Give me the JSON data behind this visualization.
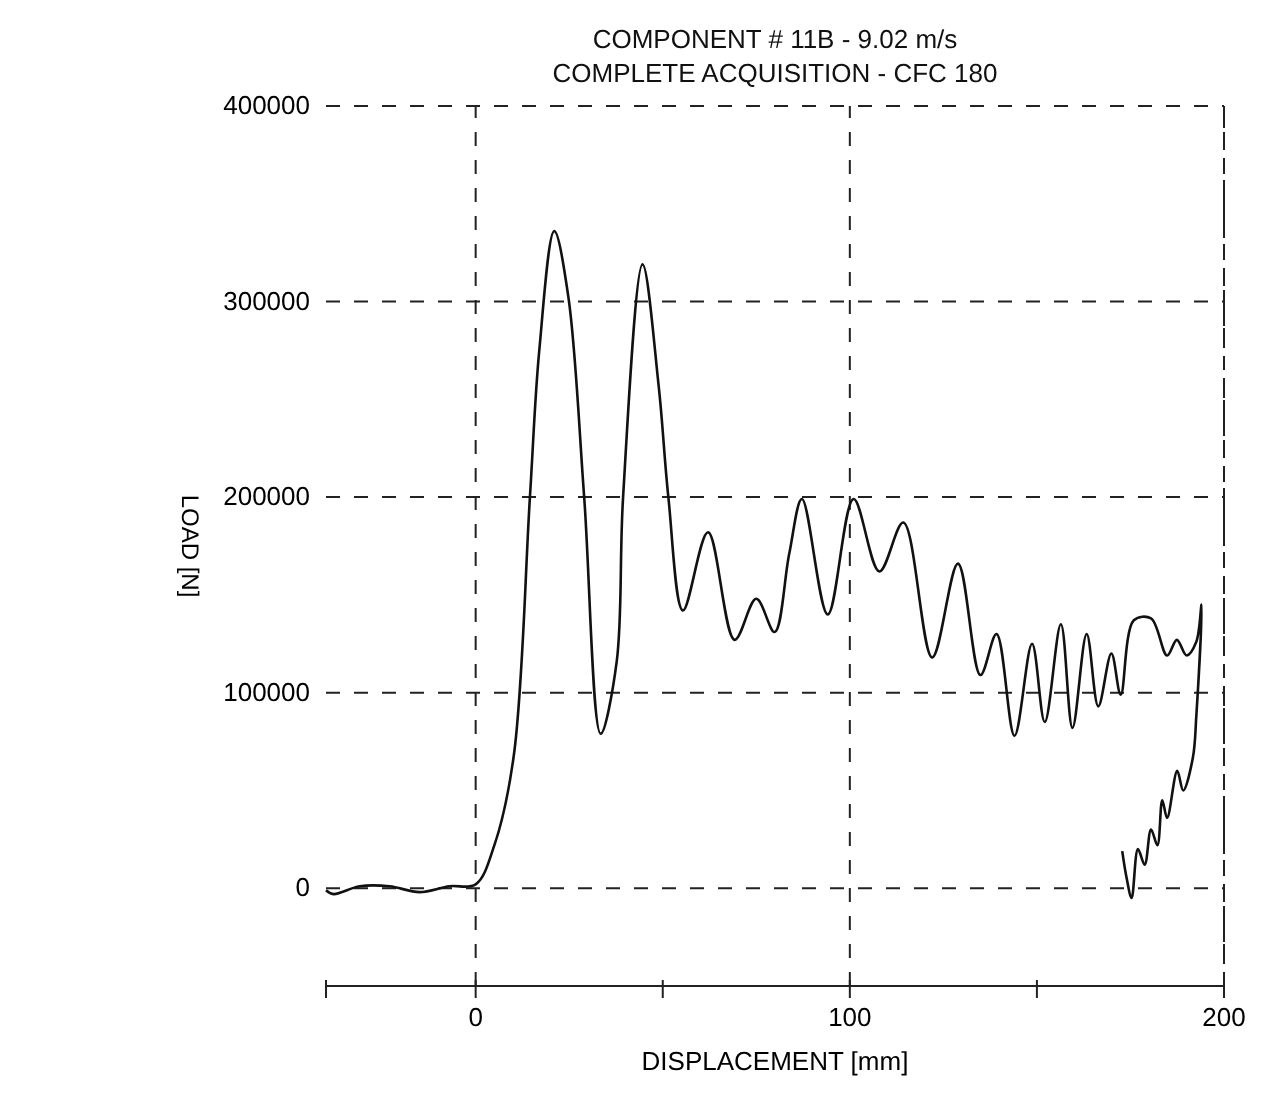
{
  "chart_data": {
    "type": "line",
    "title": "COMPONENT # 11B - 9.02 m/s",
    "subtitle": "COMPLETE ACQUISITION - CFC 180",
    "xlabel": "DISPLACEMENT [mm]",
    "ylabel": "LOAD [N]",
    "series": [
      {
        "color": "#111111",
        "x": [
          -40,
          -38,
          -31,
          -23,
          -15,
          -7,
          0,
          5,
          10.2,
          14.5,
          17,
          21,
          24.8,
          29,
          33.4,
          37.7,
          39.4,
          44.6,
          48.9,
          51.5,
          55.4,
          62.1,
          69.2,
          75,
          79.9,
          83.8,
          87.2,
          94.1,
          101,
          107.9,
          114.3,
          122,
          128.9,
          134.9,
          139.2,
          144,
          148.7,
          152.1,
          156.4,
          159.5,
          163.3,
          166.4,
          169.9,
          172.4,
          175.9,
          180.5,
          184.8,
          187.4,
          190,
          192.6,
          194,
          192.6,
          191.7,
          189.1,
          187.5,
          184.8,
          183.5,
          182.2,
          180.5,
          178.8,
          177,
          175.3,
          174,
          172.8
        ],
        "values": [
          -1000,
          -3000,
          1000,
          1000,
          -2000,
          1000,
          2000,
          22000,
          68000,
          200000,
          275000,
          336000,
          302000,
          200000,
          79000,
          116000,
          200000,
          319000,
          257000,
          200000,
          142000,
          182000,
          127000,
          148000,
          131000,
          171000,
          199000,
          140000,
          199000,
          162000,
          187000,
          118000,
          166000,
          109000,
          130000,
          78000,
          125000,
          85000,
          135000,
          82000,
          130000,
          93000,
          120000,
          99000,
          137000,
          138000,
          119000,
          127000,
          119000,
          126000,
          145000,
          88000,
          67000,
          50000,
          60000,
          36000,
          45000,
          22000,
          30000,
          12000,
          20000,
          -5000,
          5000,
          19000
        ]
      }
    ],
    "xlim": [
      -40,
      200
    ],
    "ylim": [
      -50000,
      400000
    ],
    "xticks": [
      {
        "value": -40,
        "label": null
      },
      0,
      {
        "value": 50,
        "label": null
      },
      100,
      {
        "value": 150,
        "label": null
      },
      200
    ],
    "yticks": [
      {
        "value": -50000,
        "label": null
      },
      0,
      100000,
      200000,
      300000,
      400000
    ],
    "grid": true,
    "line_style": "solid",
    "marker": "none"
  }
}
